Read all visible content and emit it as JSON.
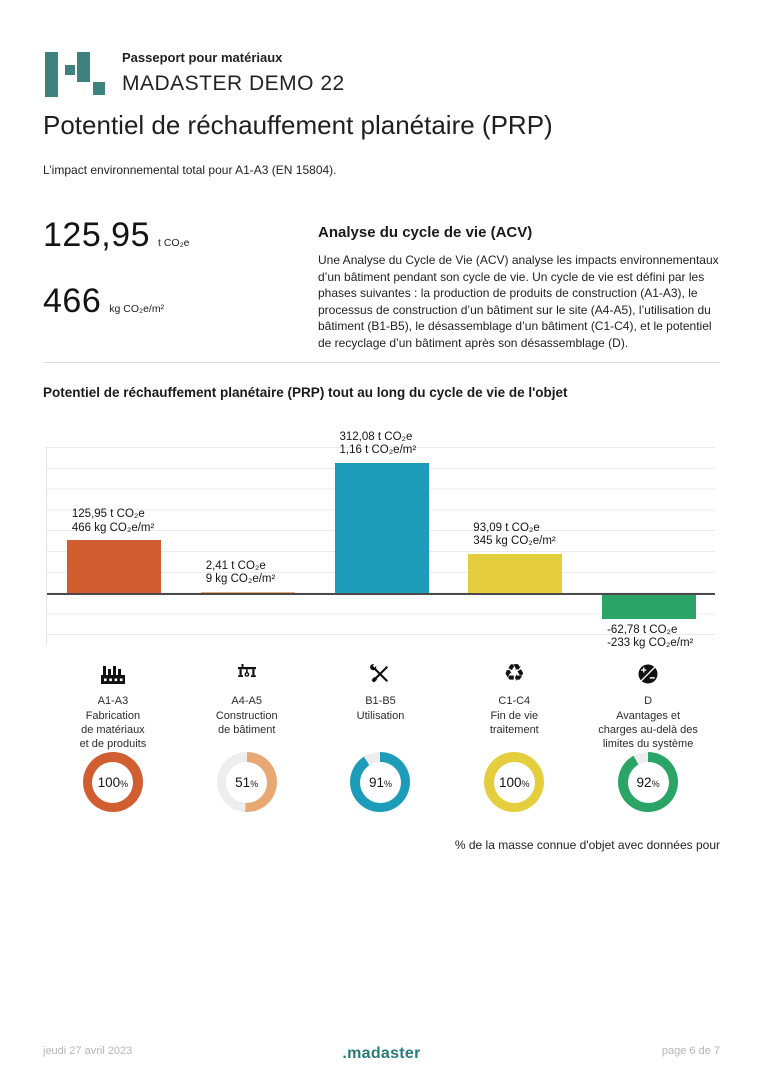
{
  "page": {
    "doc_label": "Passeport pour matériaux",
    "project_name": "MADASTER DEMO 22",
    "title": "Potentiel de réchauffement planétaire (PRP)",
    "subtitle": "L’impact environnemental total pour A1-A3 (EN 15804)."
  },
  "stats": {
    "total": {
      "value": "125,95",
      "unit": "t CO₂e"
    },
    "per_area": {
      "value": "466",
      "unit": "kg CO₂e/m²"
    }
  },
  "acv": {
    "title": "Analyse du cycle de vie (ACV)",
    "body": "Une Analyse du Cycle de Vie (ACV) analyse les impacts environnementaux d’un bâtiment pendant son cycle de vie. Un cycle de vie est défini par les phases suivantes : la production de produits de construction (A1-A3), le processus de construction d’un bâtiment sur le site (A4-A5), l’utilisation du bâtiment (B1-B5), le désassemblage d’un bâtiment (C1-C4), et le potentiel de recyclage d’un bâtiment après son désassemblage (D)."
  },
  "chart_section_title": "Potentiel de réchauffement planétaire (PRP) tout au long du cycle de vie de l'objet",
  "chart_data": {
    "type": "bar",
    "title": "Potentiel de réchauffement planétaire (PRP) tout au long du cycle de vie de l'objet",
    "categories": [
      "A1-A3",
      "A4-A5",
      "B1-B5",
      "C1-C4",
      "D"
    ],
    "series": [
      {
        "name": "t CO₂e",
        "values": [
          125.95,
          2.41,
          312.08,
          93.09,
          -62.78
        ]
      },
      {
        "name": "kg CO₂e/m²",
        "values": [
          466,
          9,
          1160,
          345,
          -233
        ]
      }
    ],
    "bar_labels": [
      [
        "125,95 t CO₂e",
        "466 kg CO₂e/m²"
      ],
      [
        "2,41 t CO₂e",
        "9 kg CO₂e/m²"
      ],
      [
        "312,08 t CO₂e",
        "1,16 t CO₂e/m²"
      ],
      [
        "93,09 t CO₂e",
        "345 kg CO₂e/m²"
      ],
      [
        "-62,78 t CO₂e",
        "-233 kg CO₂e/m²"
      ]
    ],
    "bar_colors": [
      "#d05e31",
      "#e8a873",
      "#1d9cba",
      "#e5ce3e",
      "#2ba567"
    ],
    "ylim": [
      -126,
      350
    ],
    "gridline_step": 50,
    "grid": true,
    "legend": false,
    "xlabel": "",
    "ylabel": ""
  },
  "phases": [
    {
      "icon": "factory-icon",
      "code": "A1-A3",
      "label": "Fabrication\nde matériaux\net de produits",
      "percent": 100,
      "color": "#d05e31"
    },
    {
      "icon": "crane-icon",
      "code": "A4-A5",
      "label": "Construction\nde bâtiment",
      "percent": 51,
      "color": "#e8a873"
    },
    {
      "icon": "tools-icon",
      "code": "B1-B5",
      "label": "Utilisation",
      "percent": 91,
      "color": "#1d9cba"
    },
    {
      "icon": "recycle-icon",
      "code": "C1-C4",
      "label": "Fin de vie\ntraitement",
      "percent": 100,
      "color": "#e5ce3e"
    },
    {
      "icon": "benefits-icon",
      "code": "D",
      "label": "Avantages et\ncharges au-delà des\nlimites du système",
      "percent": 92,
      "color": "#2ba567"
    }
  ],
  "ui": {
    "percent_sign": "%",
    "recycle_glyph": "♻"
  },
  "donut_caption": "% de la masse connue d'objet avec données pour",
  "footer": {
    "date": "jeudi 27 avril 2023",
    "brand_dot": ".",
    "brand": "madaster",
    "page": "page 6 de 7"
  },
  "colors": {
    "brand_teal": "#3e827f",
    "orange": "#d05e31",
    "light_orange": "#e8a873",
    "teal": "#1d9cba",
    "yellow": "#e5ce3e",
    "green": "#2ba567"
  }
}
